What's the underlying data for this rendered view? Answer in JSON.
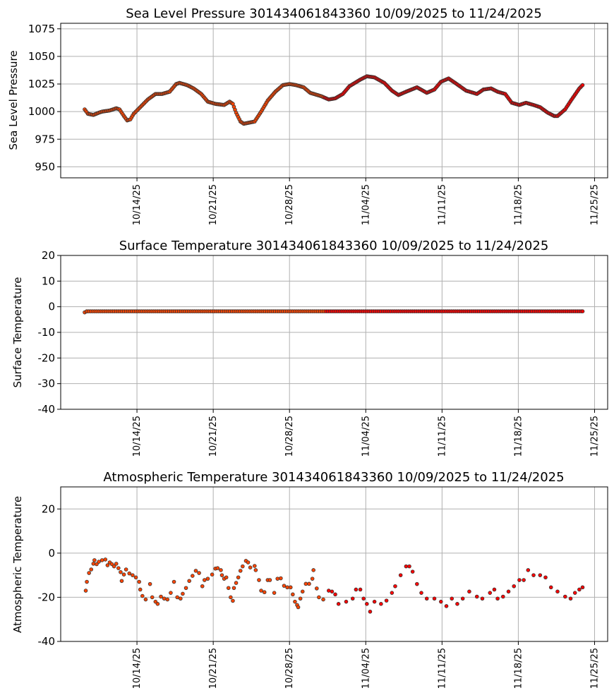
{
  "chart_data": [
    {
      "type": "scatter",
      "title": "Sea Level Pressure 301434061843360  10/09/2025 to 11/24/2025",
      "xlabel": "",
      "ylabel": "Sea Level Pressure",
      "x_units": "days since 10/09/2025",
      "xlim": [
        -2.0,
        48.2
      ],
      "ylim": [
        940,
        1080
      ],
      "yticks": [
        950,
        975,
        1000,
        1025,
        1050,
        1075
      ],
      "xticks": [
        5,
        12,
        19,
        26,
        33,
        40,
        47
      ],
      "xtick_labels": [
        "10/14/25",
        "10/21/25",
        "10/28/25",
        "11/04/25",
        "11/11/25",
        "11/18/25",
        "11/25/25"
      ],
      "grid": true,
      "dense_sampling_days": 0.1,
      "points": [
        [
          0.2,
          1002
        ],
        [
          0.5,
          998
        ],
        [
          1.0,
          997
        ],
        [
          1.5,
          999
        ],
        [
          1.8,
          1000
        ],
        [
          2.5,
          1001
        ],
        [
          3.1,
          1003
        ],
        [
          3.4,
          1002
        ],
        [
          3.8,
          996
        ],
        [
          4.1,
          992
        ],
        [
          4.4,
          993
        ],
        [
          4.7,
          998
        ],
        [
          5.4,
          1005
        ],
        [
          6.0,
          1011
        ],
        [
          6.7,
          1016
        ],
        [
          7.3,
          1016
        ],
        [
          8.0,
          1018
        ],
        [
          8.6,
          1025
        ],
        [
          8.9,
          1026
        ],
        [
          9.6,
          1024
        ],
        [
          10.2,
          1021
        ],
        [
          10.9,
          1016
        ],
        [
          11.5,
          1009
        ],
        [
          12.2,
          1007
        ],
        [
          13.0,
          1006
        ],
        [
          13.5,
          1009
        ],
        [
          13.8,
          1007
        ],
        [
          14.1,
          999
        ],
        [
          14.5,
          991
        ],
        [
          14.8,
          989
        ],
        [
          15.8,
          991
        ],
        [
          16.4,
          1000
        ],
        [
          17.0,
          1010
        ],
        [
          17.7,
          1018
        ],
        [
          18.4,
          1024
        ],
        [
          19.0,
          1025
        ],
        [
          19.6,
          1024
        ],
        [
          20.3,
          1022
        ],
        [
          20.9,
          1017
        ],
        [
          21.9,
          1014
        ],
        [
          22.6,
          1011
        ],
        [
          23.2,
          1012
        ],
        [
          23.9,
          1016
        ],
        [
          24.5,
          1023
        ],
        [
          25.5,
          1029
        ],
        [
          26.1,
          1032
        ],
        [
          26.8,
          1031
        ],
        [
          27.7,
          1026
        ],
        [
          28.4,
          1019
        ],
        [
          29.0,
          1015
        ],
        [
          29.7,
          1018
        ],
        [
          30.7,
          1022
        ],
        [
          31.6,
          1017
        ],
        [
          32.3,
          1020
        ],
        [
          32.9,
          1027
        ],
        [
          33.6,
          1030
        ],
        [
          34.2,
          1026
        ],
        [
          35.2,
          1019
        ],
        [
          36.2,
          1016
        ],
        [
          36.8,
          1020
        ],
        [
          37.5,
          1021
        ],
        [
          38.1,
          1018
        ],
        [
          38.8,
          1016
        ],
        [
          39.4,
          1008
        ],
        [
          40.1,
          1006
        ],
        [
          40.7,
          1008
        ],
        [
          41.4,
          1006
        ],
        [
          42.0,
          1004
        ],
        [
          42.7,
          999
        ],
        [
          43.3,
          996
        ],
        [
          43.6,
          996
        ],
        [
          44.3,
          1002
        ],
        [
          44.9,
          1011
        ],
        [
          45.6,
          1021
        ],
        [
          45.9,
          1024
        ]
      ]
    },
    {
      "type": "scatter",
      "title": "Surface Temperature 301434061843360  10/09/2025 to 11/24/2025",
      "xlabel": "",
      "ylabel": "Surface Temperature",
      "x_units": "days since 10/09/2025",
      "xlim": [
        -2.0,
        48.2
      ],
      "ylim": [
        -40,
        20
      ],
      "yticks": [
        -40,
        -30,
        -20,
        -10,
        0,
        10,
        20
      ],
      "xticks": [
        5,
        12,
        19,
        26,
        33,
        40,
        47
      ],
      "xtick_labels": [
        "10/14/25",
        "10/21/25",
        "10/28/25",
        "11/04/25",
        "11/11/25",
        "11/18/25",
        "11/25/25"
      ],
      "grid": true,
      "dense_sampling_days": 0.18,
      "points": [
        [
          0.2,
          -2.2
        ],
        [
          0.4,
          -1.8
        ],
        [
          45.9,
          -1.8
        ]
      ]
    },
    {
      "type": "scatter",
      "title": "Atmospheric Temperature 301434061843360  10/09/2025 to 11/24/2025",
      "xlabel": "",
      "ylabel": "Atmospheric Temperature",
      "x_units": "days since 10/09/2025",
      "xlim": [
        -2.0,
        48.2
      ],
      "ylim": [
        -40,
        30
      ],
      "yticks": [
        -40,
        -20,
        0,
        20
      ],
      "xticks": [
        5,
        12,
        19,
        26,
        33,
        40,
        47
      ],
      "xtick_labels": [
        "10/14/25",
        "10/21/25",
        "10/28/25",
        "11/04/25",
        "11/11/25",
        "11/18/25",
        "11/25/25"
      ],
      "grid": true,
      "dense_sampling_days": 0,
      "points": [
        [
          0.3,
          -17
        ],
        [
          0.4,
          -13
        ],
        [
          0.6,
          -9
        ],
        [
          0.8,
          -7.4
        ],
        [
          1.0,
          -4.8
        ],
        [
          1.1,
          -3.2
        ],
        [
          1.3,
          -5
        ],
        [
          1.5,
          -3.9
        ],
        [
          1.8,
          -3.2
        ],
        [
          2.1,
          -2.9
        ],
        [
          2.3,
          -5.5
        ],
        [
          2.5,
          -4.2
        ],
        [
          2.7,
          -5
        ],
        [
          2.9,
          -6
        ],
        [
          3.1,
          -4.8
        ],
        [
          3.3,
          -6.8
        ],
        [
          3.5,
          -8.6
        ],
        [
          3.6,
          -12.6
        ],
        [
          3.8,
          -9.7
        ],
        [
          4.0,
          -7.4
        ],
        [
          4.3,
          -9.2
        ],
        [
          4.6,
          -10
        ],
        [
          4.9,
          -11
        ],
        [
          5.2,
          -13
        ],
        [
          5.3,
          -16.5
        ],
        [
          5.5,
          -19.4
        ],
        [
          5.8,
          -21
        ],
        [
          6.2,
          -14
        ],
        [
          6.4,
          -20
        ],
        [
          6.7,
          -22
        ],
        [
          6.9,
          -23
        ],
        [
          7.2,
          -19.7
        ],
        [
          7.5,
          -20.6
        ],
        [
          7.8,
          -21
        ],
        [
          8.1,
          -18
        ],
        [
          8.4,
          -13
        ],
        [
          8.7,
          -20
        ],
        [
          9.0,
          -20.6
        ],
        [
          9.2,
          -18.4
        ],
        [
          9.5,
          -15.8
        ],
        [
          9.8,
          -12.6
        ],
        [
          10.1,
          -10.3
        ],
        [
          10.4,
          -8
        ],
        [
          10.7,
          -9
        ],
        [
          11.0,
          -15
        ],
        [
          11.2,
          -12.2
        ],
        [
          11.5,
          -11.6
        ],
        [
          11.9,
          -9.7
        ],
        [
          12.2,
          -7
        ],
        [
          12.4,
          -6.8
        ],
        [
          12.7,
          -7.7
        ],
        [
          12.8,
          -10
        ],
        [
          13.0,
          -11.6
        ],
        [
          13.2,
          -11
        ],
        [
          13.4,
          -15.8
        ],
        [
          13.6,
          -20
        ],
        [
          13.8,
          -21.6
        ],
        [
          13.9,
          -15.8
        ],
        [
          14.1,
          -13.5
        ],
        [
          14.3,
          -11
        ],
        [
          14.5,
          -8
        ],
        [
          14.7,
          -6
        ],
        [
          15.0,
          -3.5
        ],
        [
          15.2,
          -4.2
        ],
        [
          15.4,
          -6.5
        ],
        [
          15.8,
          -5.8
        ],
        [
          15.9,
          -7.7
        ],
        [
          16.2,
          -12.2
        ],
        [
          16.4,
          -17
        ],
        [
          16.7,
          -17.7
        ],
        [
          17.0,
          -12.2
        ],
        [
          17.2,
          -12.2
        ],
        [
          17.6,
          -18
        ],
        [
          17.9,
          -11.6
        ],
        [
          18.2,
          -11.4
        ],
        [
          18.5,
          -14.8
        ],
        [
          18.8,
          -15.5
        ],
        [
          19.1,
          -15.5
        ],
        [
          19.3,
          -18.7
        ],
        [
          19.5,
          -22
        ],
        [
          19.7,
          -23.5
        ],
        [
          19.8,
          -24.5
        ],
        [
          20.0,
          -20.6
        ],
        [
          20.2,
          -17.4
        ],
        [
          20.5,
          -13.9
        ],
        [
          20.8,
          -13.9
        ],
        [
          21.1,
          -11.6
        ],
        [
          21.2,
          -7.7
        ],
        [
          21.5,
          -16
        ],
        [
          21.7,
          -20
        ],
        [
          22.1,
          -21
        ],
        [
          22.6,
          -17
        ],
        [
          22.9,
          -17.4
        ],
        [
          23.2,
          -18.7
        ],
        [
          23.5,
          -23
        ],
        [
          24.2,
          -22
        ],
        [
          24.8,
          -20.6
        ],
        [
          25.1,
          -16.5
        ],
        [
          25.5,
          -16.5
        ],
        [
          25.8,
          -20.6
        ],
        [
          26.1,
          -23
        ],
        [
          26.4,
          -26.5
        ],
        [
          26.8,
          -22
        ],
        [
          27.4,
          -23
        ],
        [
          27.9,
          -21.5
        ],
        [
          28.4,
          -18
        ],
        [
          28.7,
          -15
        ],
        [
          29.2,
          -10
        ],
        [
          29.7,
          -6
        ],
        [
          30.0,
          -6
        ],
        [
          30.3,
          -8.4
        ],
        [
          30.7,
          -14
        ],
        [
          31.1,
          -18
        ],
        [
          31.6,
          -20.6
        ],
        [
          32.3,
          -20.6
        ],
        [
          32.9,
          -22
        ],
        [
          33.4,
          -24
        ],
        [
          33.9,
          -20.6
        ],
        [
          34.4,
          -23
        ],
        [
          34.9,
          -20.6
        ],
        [
          35.5,
          -17.4
        ],
        [
          36.2,
          -19.7
        ],
        [
          36.7,
          -20.6
        ],
        [
          37.4,
          -18
        ],
        [
          37.8,
          -16.5
        ],
        [
          38.1,
          -20.6
        ],
        [
          38.6,
          -19.7
        ],
        [
          39.1,
          -17.4
        ],
        [
          39.6,
          -15
        ],
        [
          40.1,
          -12.2
        ],
        [
          40.5,
          -12.2
        ],
        [
          40.9,
          -7.7
        ],
        [
          41.4,
          -10
        ],
        [
          42.0,
          -10
        ],
        [
          42.5,
          -11
        ],
        [
          43.0,
          -15.5
        ],
        [
          43.6,
          -17.4
        ],
        [
          44.3,
          -19.7
        ],
        [
          44.8,
          -20.6
        ],
        [
          45.2,
          -18
        ],
        [
          45.6,
          -16.5
        ],
        [
          45.9,
          -15.5
        ]
      ]
    }
  ],
  "colors": {
    "marker_early": "#ff4500",
    "marker_late": "#ff0000",
    "marker_edge": "#333333",
    "grid": "#b0b0b0",
    "color_switch_day": 22.2
  }
}
